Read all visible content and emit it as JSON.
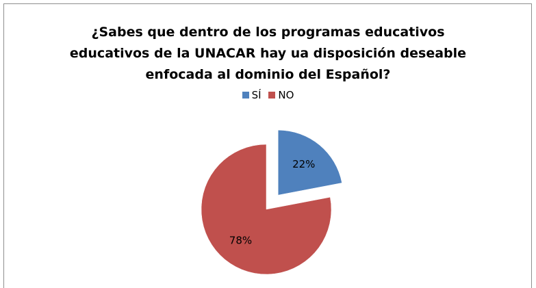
{
  "chart_data": {
    "type": "pie",
    "title_lines": [
      "¿Sabes que dentro de los programas educativos",
      "educativos de la UNACAR hay ua disposición deseable",
      "enfocada al dominio del Español?"
    ],
    "categories": [
      "SÍ",
      "NO"
    ],
    "values": [
      22,
      78
    ],
    "labels": [
      "22%",
      "78%"
    ],
    "colors": [
      "#4f81bd",
      "#c0504d"
    ],
    "exploded": "SÍ",
    "legend_position": "top"
  }
}
